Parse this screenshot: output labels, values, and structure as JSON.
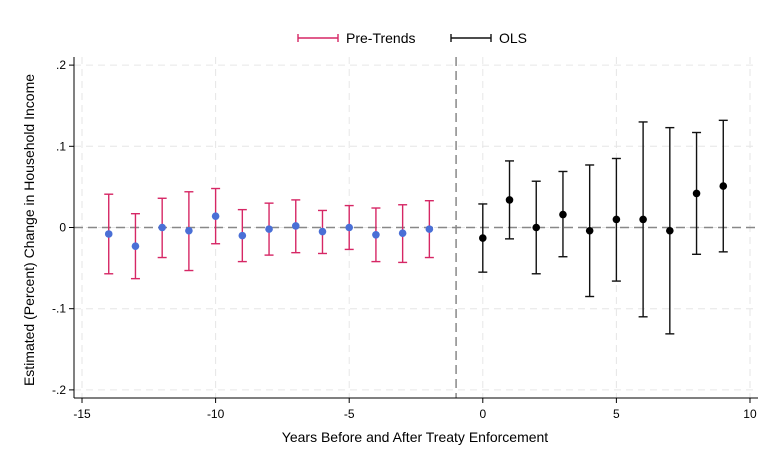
{
  "chart_data": {
    "type": "scatter",
    "xlabel": "Years Before and After Treaty Enforcement",
    "ylabel": "Estimated (Percent) Change in Household Income",
    "xlim": [
      -15.3,
      10.3
    ],
    "ylim": [
      -0.21,
      0.21
    ],
    "x_ticks": [
      -15,
      -10,
      -5,
      0,
      5,
      10
    ],
    "x_tick_labels": [
      "-15",
      "-10",
      "-5",
      "0",
      "5",
      "10"
    ],
    "y_ticks": [
      0.2,
      0.1,
      0,
      -0.1,
      -0.2
    ],
    "y_tick_labels": [
      ".2",
      ".1",
      "0",
      "-.1",
      "-.2"
    ],
    "grid": true,
    "legend_position": "top-center",
    "reference_lines": {
      "vertical_x": -1,
      "horizontal_y": 0
    },
    "series": [
      {
        "name": "Pre-Trends",
        "ci_color": "#d62765",
        "point_color": "#4a6fd6",
        "x": [
          -14,
          -13,
          -12,
          -11,
          -10,
          -9,
          -8,
          -7,
          -6,
          -5,
          -4,
          -3,
          -2
        ],
        "values": [
          -0.008,
          -0.023,
          0.0,
          -0.004,
          0.014,
          -0.01,
          -0.002,
          0.002,
          -0.005,
          0.0,
          -0.009,
          -0.007,
          -0.002
        ],
        "ci_low": [
          -0.057,
          -0.063,
          -0.037,
          -0.053,
          -0.02,
          -0.042,
          -0.034,
          -0.031,
          -0.032,
          -0.027,
          -0.042,
          -0.043,
          -0.037
        ],
        "ci_high": [
          0.041,
          0.017,
          0.036,
          0.044,
          0.048,
          0.022,
          0.03,
          0.034,
          0.021,
          0.027,
          0.024,
          0.028,
          0.033
        ]
      },
      {
        "name": "OLS",
        "ci_color": "#111111",
        "point_color": "#000000",
        "x": [
          0,
          1,
          2,
          3,
          4,
          5,
          6,
          7,
          8,
          9
        ],
        "values": [
          -0.013,
          0.034,
          0.0,
          0.016,
          -0.004,
          0.01,
          0.01,
          -0.004,
          0.042,
          0.051
        ],
        "ci_low": [
          -0.055,
          -0.014,
          -0.057,
          -0.036,
          -0.085,
          -0.066,
          -0.11,
          -0.131,
          -0.033,
          -0.03
        ],
        "ci_high": [
          0.029,
          0.082,
          0.057,
          0.069,
          0.077,
          0.085,
          0.13,
          0.123,
          0.117,
          0.132
        ]
      }
    ]
  }
}
